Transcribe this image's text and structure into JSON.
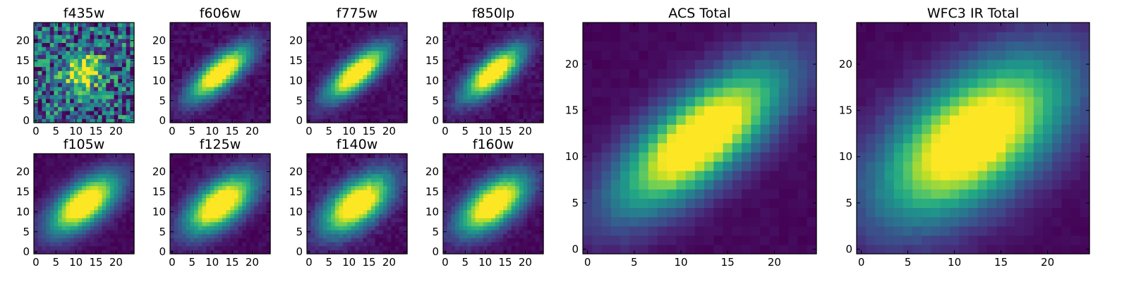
{
  "figure": {
    "background": "#ffffff"
  },
  "chart_data": [
    {
      "type": "heatmap",
      "title": "f435w",
      "source": "f435w",
      "xlim": [
        -0.5,
        24.5
      ],
      "ylim": [
        -0.5,
        24.5
      ],
      "xticks": [
        0,
        5,
        10,
        15,
        20
      ],
      "yticks": [
        0,
        5,
        10,
        15,
        20
      ],
      "xlabel": "",
      "ylabel": "",
      "grid": false,
      "colormap": "viridis",
      "peak": [
        12,
        12
      ],
      "sigma_major": 3.2,
      "sigma_minor": 2.6,
      "angle_deg": 30,
      "noise_level": 0.38,
      "floor": 0.32,
      "peak_level": 1.0
    },
    {
      "type": "heatmap",
      "title": "f606w",
      "source": "f606w",
      "xlim": [
        -0.5,
        24.5
      ],
      "ylim": [
        -0.5,
        24.5
      ],
      "xticks": [
        0,
        5,
        10,
        15,
        20
      ],
      "yticks": [
        0,
        5,
        10,
        15,
        20
      ],
      "xlabel": "",
      "ylabel": "",
      "grid": false,
      "colormap": "viridis",
      "peak": [
        12,
        12
      ],
      "sigma_major": 6.5,
      "sigma_minor": 2.4,
      "angle_deg": 40,
      "noise_level": 0.05,
      "floor": 0.03,
      "peak_level": 1.0
    },
    {
      "type": "heatmap",
      "title": "f775w",
      "source": "f775w",
      "xlim": [
        -0.5,
        24.5
      ],
      "ylim": [
        -0.5,
        24.5
      ],
      "xticks": [
        0,
        5,
        10,
        15,
        20
      ],
      "yticks": [
        0,
        5,
        10,
        15,
        20
      ],
      "xlabel": "",
      "ylabel": "",
      "grid": false,
      "colormap": "viridis",
      "peak": [
        12,
        12
      ],
      "sigma_major": 6.5,
      "sigma_minor": 2.4,
      "angle_deg": 40,
      "noise_level": 0.04,
      "floor": 0.03,
      "peak_level": 1.0
    },
    {
      "type": "heatmap",
      "title": "f850lp",
      "source": "f850lp",
      "xlim": [
        -0.5,
        24.5
      ],
      "ylim": [
        -0.5,
        24.5
      ],
      "xticks": [
        0,
        5,
        10,
        15,
        20
      ],
      "yticks": [
        0,
        5,
        10,
        15,
        20
      ],
      "xlabel": "",
      "ylabel": "",
      "grid": false,
      "colormap": "viridis",
      "peak": [
        12,
        12
      ],
      "sigma_major": 6.3,
      "sigma_minor": 2.5,
      "angle_deg": 40,
      "noise_level": 0.05,
      "floor": 0.03,
      "peak_level": 1.0
    },
    {
      "type": "heatmap",
      "title": "f105w",
      "source": "f105w",
      "xlim": [
        -0.5,
        24.5
      ],
      "ylim": [
        -0.5,
        24.5
      ],
      "xticks": [
        0,
        5,
        10,
        15,
        20
      ],
      "yticks": [
        0,
        5,
        10,
        15,
        20
      ],
      "xlabel": "",
      "ylabel": "",
      "grid": false,
      "colormap": "viridis",
      "peak": [
        12,
        12
      ],
      "sigma_major": 7.0,
      "sigma_minor": 3.4,
      "angle_deg": 38,
      "noise_level": 0.03,
      "floor": 0.02,
      "peak_level": 1.0
    },
    {
      "type": "heatmap",
      "title": "f125w",
      "source": "f125w",
      "xlim": [
        -0.5,
        24.5
      ],
      "ylim": [
        -0.5,
        24.5
      ],
      "xticks": [
        0,
        5,
        10,
        15,
        20
      ],
      "yticks": [
        0,
        5,
        10,
        15,
        20
      ],
      "xlabel": "",
      "ylabel": "",
      "grid": false,
      "colormap": "viridis",
      "peak": [
        12,
        12
      ],
      "sigma_major": 7.0,
      "sigma_minor": 3.5,
      "angle_deg": 38,
      "noise_level": 0.04,
      "floor": 0.02,
      "peak_level": 1.0
    },
    {
      "type": "heatmap",
      "title": "f140w",
      "source": "f140w",
      "xlim": [
        -0.5,
        24.5
      ],
      "ylim": [
        -0.5,
        24.5
      ],
      "xticks": [
        0,
        5,
        10,
        15,
        20
      ],
      "yticks": [
        0,
        5,
        10,
        15,
        20
      ],
      "xlabel": "",
      "ylabel": "",
      "grid": false,
      "colormap": "viridis",
      "peak": [
        12,
        12
      ],
      "sigma_major": 7.0,
      "sigma_minor": 3.6,
      "angle_deg": 38,
      "noise_level": 0.05,
      "floor": 0.02,
      "peak_level": 1.0
    },
    {
      "type": "heatmap",
      "title": "f160w",
      "source": "f160w",
      "xlim": [
        -0.5,
        24.5
      ],
      "ylim": [
        -0.5,
        24.5
      ],
      "xticks": [
        0,
        5,
        10,
        15,
        20
      ],
      "yticks": [
        0,
        5,
        10,
        15,
        20
      ],
      "xlabel": "",
      "ylabel": "",
      "grid": false,
      "colormap": "viridis",
      "peak": [
        12,
        12
      ],
      "sigma_major": 7.0,
      "sigma_minor": 3.5,
      "angle_deg": 38,
      "noise_level": 0.04,
      "floor": 0.02,
      "peak_level": 1.0
    },
    {
      "type": "heatmap",
      "title": "ACS Total",
      "source": "ACS",
      "xlim": [
        -0.5,
        24.5
      ],
      "ylim": [
        -0.5,
        24.5
      ],
      "xticks": [
        0,
        5,
        10,
        15,
        20
      ],
      "yticks": [
        0,
        5,
        10,
        15,
        20
      ],
      "xlabel": "",
      "ylabel": "",
      "grid": false,
      "colormap": "viridis",
      "peak": [
        12,
        12
      ],
      "sigma_major": 7.5,
      "sigma_minor": 3.0,
      "angle_deg": 40,
      "noise_level": 0.02,
      "floor": 0.02,
      "peak_level": 1.0
    },
    {
      "type": "heatmap",
      "title": "WFC3 IR Total",
      "source": "WFC3 IR",
      "xlim": [
        -0.5,
        24.5
      ],
      "ylim": [
        -0.5,
        24.5
      ],
      "xticks": [
        0,
        5,
        10,
        15,
        20
      ],
      "yticks": [
        0,
        5,
        10,
        15,
        20
      ],
      "xlabel": "",
      "ylabel": "",
      "grid": false,
      "colormap": "viridis",
      "peak": [
        12,
        12
      ],
      "sigma_major": 8.0,
      "sigma_minor": 4.2,
      "angle_deg": 38,
      "noise_level": 0.02,
      "floor": 0.02,
      "peak_level": 1.0
    }
  ]
}
